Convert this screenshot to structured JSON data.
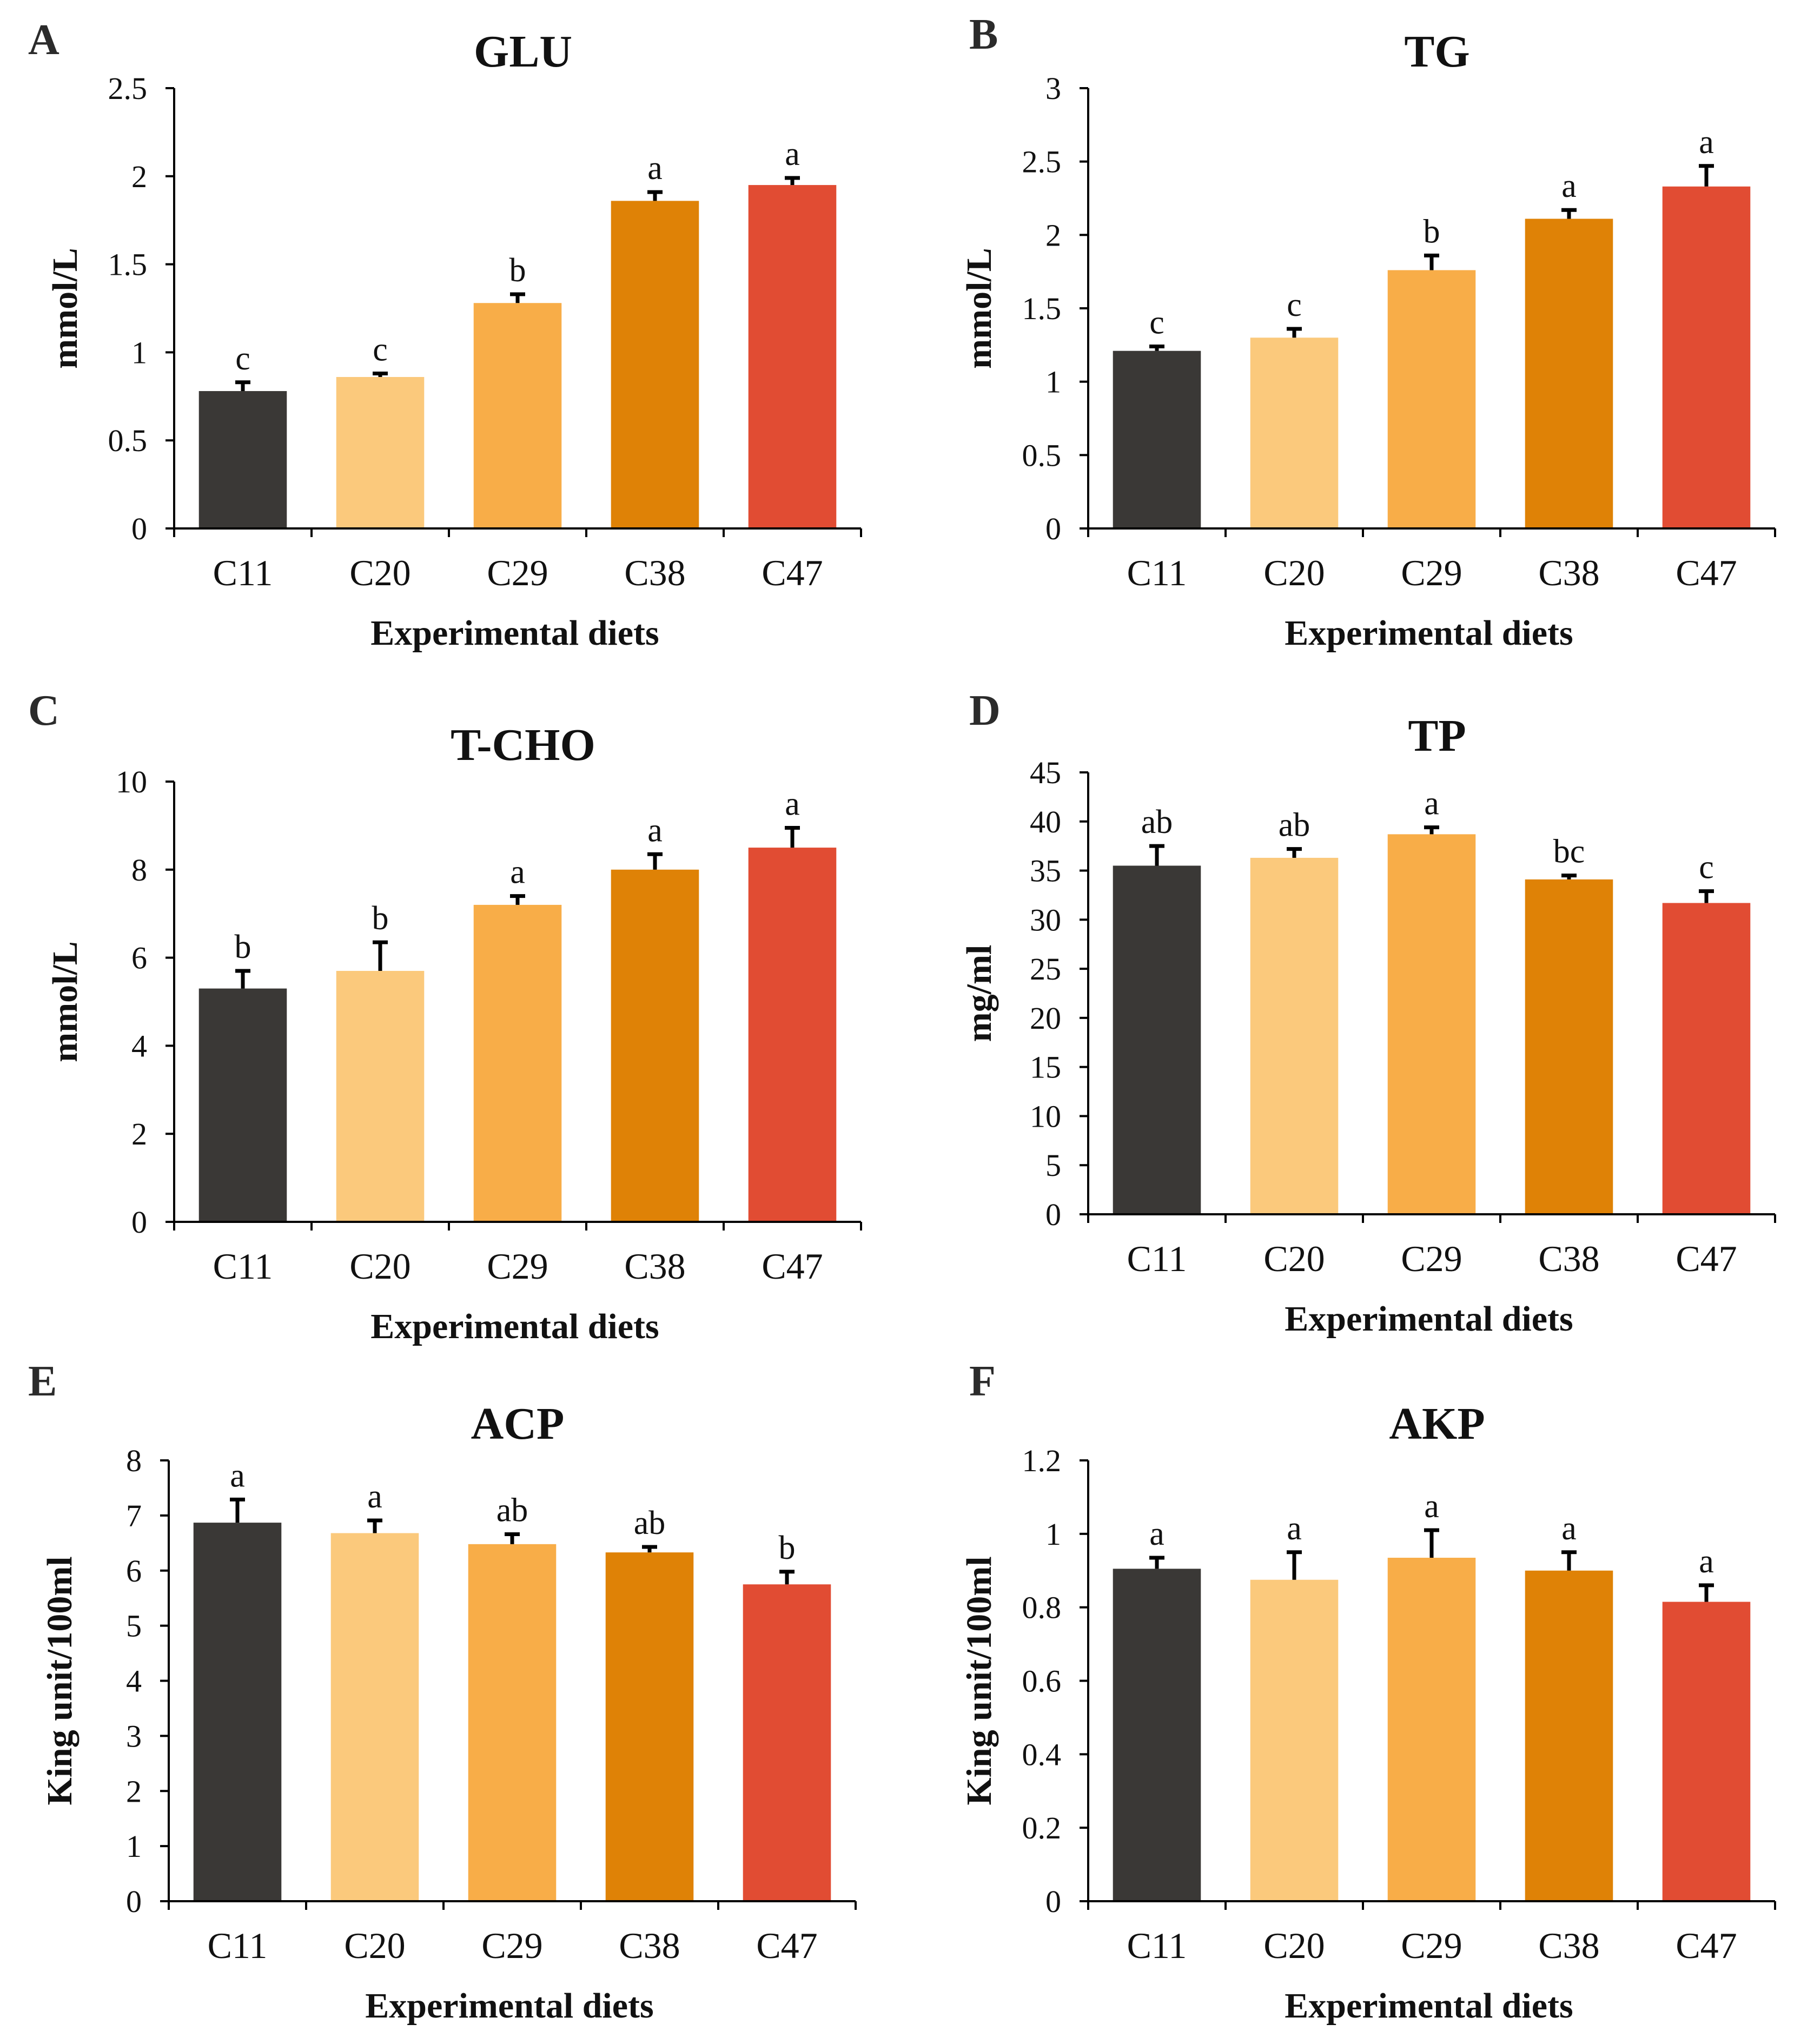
{
  "chart_data": [
    {
      "panel": "A",
      "type": "bar",
      "title": "GLU",
      "categories": [
        "C11",
        "C20",
        "C29",
        "C38",
        "C47"
      ],
      "values": [
        0.78,
        0.86,
        1.28,
        1.86,
        1.95
      ],
      "errors": [
        0.05,
        0.02,
        0.05,
        0.05,
        0.04
      ],
      "significance": [
        "c",
        "c",
        "b",
        "a",
        "a"
      ],
      "ylabel": "mmol/L",
      "xlabel": "Experimental diets",
      "ylim": [
        0,
        2.5
      ],
      "ticks": [
        "0",
        "0.5",
        "1",
        "1.5",
        "2",
        "2.5"
      ]
    },
    {
      "panel": "B",
      "type": "bar",
      "title": "TG",
      "categories": [
        "C11",
        "C20",
        "C29",
        "C38",
        "C47"
      ],
      "values": [
        1.21,
        1.3,
        1.76,
        2.11,
        2.33
      ],
      "errors": [
        0.03,
        0.06,
        0.1,
        0.06,
        0.14
      ],
      "significance": [
        "c",
        "c",
        "b",
        "a",
        "a"
      ],
      "ylabel": "mmol/L",
      "xlabel": "Experimental diets",
      "ylim": [
        0,
        3
      ],
      "ticks": [
        "0",
        "0.5",
        "1",
        "1.5",
        "2",
        "2.5",
        "3"
      ]
    },
    {
      "panel": "C",
      "type": "bar",
      "title": "T-CHO",
      "categories": [
        "C11",
        "C20",
        "C29",
        "C38",
        "C47"
      ],
      "values": [
        5.3,
        5.7,
        7.2,
        8.0,
        8.5
      ],
      "errors": [
        0.4,
        0.65,
        0.2,
        0.35,
        0.45
      ],
      "significance": [
        "b",
        "b",
        "a",
        "a",
        "a"
      ],
      "ylabel": "mmol/L",
      "xlabel": "Experimental diets",
      "ylim": [
        0,
        10
      ],
      "ticks": [
        "0",
        "2",
        "4",
        "6",
        "8",
        "10"
      ]
    },
    {
      "panel": "D",
      "type": "bar",
      "title": "TP",
      "categories": [
        "C11",
        "C20",
        "C29",
        "C38",
        "C47"
      ],
      "values": [
        35.5,
        36.3,
        38.7,
        34.1,
        31.7
      ],
      "errors": [
        2.0,
        0.9,
        0.7,
        0.4,
        1.2
      ],
      "significance": [
        "ab",
        "ab",
        "a",
        "bc",
        "c"
      ],
      "ylabel": "mg/ml",
      "xlabel": "Experimental diets",
      "ylim": [
        0,
        45
      ],
      "ticks": [
        "0",
        "5",
        "10",
        "15",
        "20",
        "25",
        "30",
        "35",
        "40",
        "45"
      ]
    },
    {
      "panel": "E",
      "type": "bar",
      "title": "ACP",
      "categories": [
        "C11",
        "C20",
        "C29",
        "C38",
        "C47"
      ],
      "values": [
        6.87,
        6.68,
        6.48,
        6.33,
        5.75
      ],
      "errors": [
        0.42,
        0.23,
        0.18,
        0.1,
        0.23
      ],
      "significance": [
        "a",
        "a",
        "ab",
        "ab",
        "b"
      ],
      "ylabel": "King unit/100ml",
      "xlabel": "Experimental diets",
      "ylim": [
        0,
        8
      ],
      "ticks": [
        "0",
        "1",
        "2",
        "3",
        "4",
        "5",
        "6",
        "7",
        "8"
      ]
    },
    {
      "panel": "F",
      "type": "bar",
      "title": "AKP",
      "categories": [
        "C11",
        "C20",
        "C29",
        "C38",
        "C47"
      ],
      "values": [
        0.905,
        0.875,
        0.935,
        0.9,
        0.815
      ],
      "errors": [
        0.03,
        0.075,
        0.075,
        0.05,
        0.045
      ],
      "significance": [
        "a",
        "a",
        "a",
        "a",
        "a"
      ],
      "ylabel": "King unit/100ml",
      "xlabel": "Experimental diets",
      "ylim": [
        0,
        1.2
      ],
      "ticks": [
        "0",
        "0.2",
        "0.4",
        "0.6",
        "0.8",
        "1",
        "1.2"
      ]
    }
  ],
  "bar_colors": [
    "#3a3836",
    "#fbc97c",
    "#f8ad48",
    "#df8206",
    "#e14c33"
  ]
}
